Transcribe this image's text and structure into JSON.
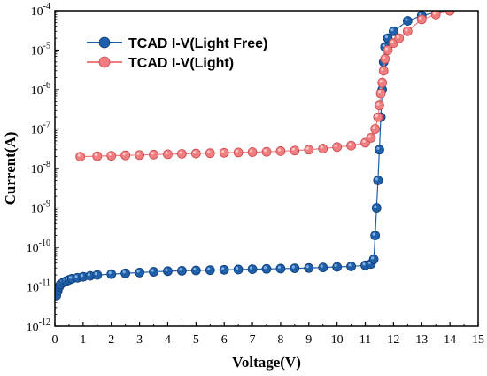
{
  "chart_data": {
    "type": "scatter",
    "xlabel": "Voltage(V)",
    "ylabel": "Current(A)",
    "xlim": [
      0,
      15
    ],
    "ylim_log10": [
      -12,
      -4
    ],
    "yscale": "log",
    "xticks": [
      "0",
      "1",
      "2",
      "3",
      "4",
      "5",
      "6",
      "7",
      "8",
      "9",
      "10",
      "11",
      "12",
      "13",
      "14",
      "15"
    ],
    "yticks": [
      {
        "base": "10",
        "exp": "-12"
      },
      {
        "base": "10",
        "exp": "-11"
      },
      {
        "base": "10",
        "exp": "-10"
      },
      {
        "base": "10",
        "exp": "-9"
      },
      {
        "base": "10",
        "exp": "-8"
      },
      {
        "base": "10",
        "exp": "-7"
      },
      {
        "base": "10",
        "exp": "-6"
      },
      {
        "base": "10",
        "exp": "-5"
      },
      {
        "base": "10",
        "exp": "-4"
      }
    ],
    "legend_position": "top-left",
    "series": [
      {
        "name": "TCAD I-V(Light Free)",
        "color": "#1f5fa8",
        "x": [
          0.05,
          0.1,
          0.15,
          0.2,
          0.3,
          0.4,
          0.5,
          0.6,
          0.8,
          1.0,
          1.25,
          1.5,
          2,
          2.5,
          3,
          3.5,
          4,
          4.5,
          5,
          5.5,
          6,
          6.5,
          7,
          7.5,
          8,
          8.5,
          9,
          9.5,
          10,
          10.5,
          11,
          11.2,
          11.3,
          11.35,
          11.4,
          11.45,
          11.5,
          11.55,
          11.6,
          11.65,
          11.7,
          11.8,
          12,
          12.5,
          13,
          13.5,
          14
        ],
        "y": [
          6e-12,
          8e-12,
          1e-11,
          1.15e-11,
          1.3e-11,
          1.4e-11,
          1.5e-11,
          1.6e-11,
          1.7e-11,
          1.8e-11,
          1.9e-11,
          2e-11,
          2.1e-11,
          2.2e-11,
          2.3e-11,
          2.4e-11,
          2.5e-11,
          2.55e-11,
          2.6e-11,
          2.65e-11,
          2.7e-11,
          2.75e-11,
          2.8e-11,
          2.85e-11,
          2.9e-11,
          2.95e-11,
          3e-11,
          3.1e-11,
          3.2e-11,
          3.3e-11,
          3.5e-11,
          3.8e-11,
          5e-11,
          2e-10,
          1e-09,
          5e-09,
          3e-08,
          2e-07,
          1e-06,
          5e-06,
          1.2e-05,
          2e-05,
          3e-05,
          5.5e-05,
          7.5e-05,
          9e-05,
          0.0001
        ]
      },
      {
        "name": "TCAD I-V(Light)",
        "color": "#f07e80",
        "x": [
          0.9,
          1.5,
          2,
          2.5,
          3,
          3.5,
          4,
          4.5,
          5,
          5.5,
          6,
          6.5,
          7,
          7.5,
          8,
          8.5,
          9,
          9.5,
          10,
          10.5,
          11,
          11.2,
          11.35,
          11.45,
          11.5,
          11.55,
          11.6,
          11.65,
          11.7,
          11.8,
          12,
          12.2,
          12.5,
          13,
          13.5,
          14
        ],
        "y": [
          2e-08,
          2.05e-08,
          2.1e-08,
          2.15e-08,
          2.2e-08,
          2.25e-08,
          2.3e-08,
          2.35e-08,
          2.4e-08,
          2.45e-08,
          2.5e-08,
          2.55e-08,
          2.6e-08,
          2.65e-08,
          2.75e-08,
          2.85e-08,
          3e-08,
          3.2e-08,
          3.5e-08,
          3.8e-08,
          4.5e-08,
          6e-08,
          1e-07,
          2e-07,
          4e-07,
          8e-07,
          1.5e-06,
          3e-06,
          6e-06,
          1e-05,
          1.5e-05,
          2e-05,
          3e-05,
          6e-05,
          8e-05,
          0.0001
        ]
      }
    ]
  }
}
